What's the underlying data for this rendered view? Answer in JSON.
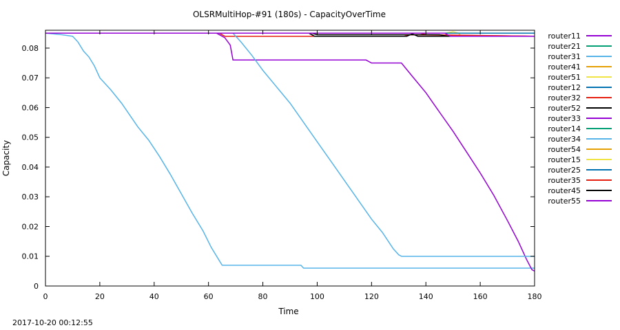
{
  "chart_data": {
    "type": "line",
    "title": "OLSRMultiHop-#91 (180s) - CapacityOverTime",
    "xlabel": "Time",
    "ylabel": "Capacity",
    "xlim": [
      0,
      180
    ],
    "ylim": [
      0,
      0.086
    ],
    "xticks": [
      "0",
      "20",
      "40",
      "60",
      "80",
      "100",
      "120",
      "140",
      "160",
      "180"
    ],
    "yticks": [
      "0",
      "0.01",
      "0.02",
      "0.03",
      "0.04",
      "0.05",
      "0.06",
      "0.07",
      "0.08"
    ],
    "grid": false,
    "legend_position": "right",
    "series": [
      {
        "name": "router11",
        "color": "#9400d3",
        "points": [
          [
            0,
            0.085
          ],
          [
            180,
            0.085
          ]
        ]
      },
      {
        "name": "router21",
        "color": "#009e73",
        "points": [
          [
            0,
            0.085
          ],
          [
            180,
            0.085
          ]
        ]
      },
      {
        "name": "router31",
        "color": "#56b4e9",
        "points": [
          [
            0,
            0.085
          ],
          [
            6,
            0.0845
          ],
          [
            10,
            0.084
          ],
          [
            12,
            0.082
          ],
          [
            14,
            0.079
          ],
          [
            16,
            0.077
          ],
          [
            18,
            0.074
          ],
          [
            20,
            0.07
          ],
          [
            24,
            0.066
          ],
          [
            28,
            0.0615
          ],
          [
            31,
            0.0575
          ],
          [
            34,
            0.0535
          ],
          [
            38,
            0.049
          ],
          [
            42,
            0.0435
          ],
          [
            46,
            0.0375
          ],
          [
            50,
            0.031
          ],
          [
            54,
            0.0245
          ],
          [
            58,
            0.0185
          ],
          [
            61,
            0.013
          ],
          [
            64,
            0.0085
          ],
          [
            65,
            0.007
          ],
          [
            94,
            0.007
          ],
          [
            95,
            0.006
          ],
          [
            180,
            0.006
          ]
        ]
      },
      {
        "name": "router41",
        "color": "#e69f00",
        "points": [
          [
            0,
            0.085
          ],
          [
            180,
            0.085
          ]
        ]
      },
      {
        "name": "router51",
        "color": "#f0e442",
        "points": [
          [
            0,
            0.085
          ],
          [
            147,
            0.085
          ],
          [
            150,
            0.0855
          ],
          [
            152,
            0.085
          ],
          [
            153,
            0.084
          ],
          [
            180,
            0.084
          ]
        ]
      },
      {
        "name": "router12",
        "color": "#0072b2",
        "points": [
          [
            0,
            0.085
          ],
          [
            180,
            0.085
          ]
        ]
      },
      {
        "name": "router32",
        "color": "#e51e10",
        "points": [
          [
            0,
            0.085
          ],
          [
            64,
            0.085
          ],
          [
            66,
            0.084
          ],
          [
            132,
            0.084
          ],
          [
            134,
            0.0845
          ],
          [
            180,
            0.084
          ]
        ]
      },
      {
        "name": "router52",
        "color": "#000000",
        "points": [
          [
            0,
            0.085
          ],
          [
            97,
            0.085
          ],
          [
            99,
            0.084
          ],
          [
            133,
            0.084
          ],
          [
            135,
            0.0848
          ],
          [
            137,
            0.084
          ],
          [
            180,
            0.084
          ]
        ]
      },
      {
        "name": "router33",
        "color": "#9400d3",
        "points": [
          [
            0,
            0.085
          ],
          [
            63,
            0.085
          ],
          [
            66,
            0.0835
          ],
          [
            68,
            0.081
          ],
          [
            69,
            0.076
          ],
          [
            118,
            0.076
          ],
          [
            120,
            0.075
          ],
          [
            131,
            0.075
          ],
          [
            135,
            0.0705
          ],
          [
            140,
            0.065
          ],
          [
            145,
            0.0585
          ],
          [
            150,
            0.052
          ],
          [
            155,
            0.045
          ],
          [
            160,
            0.038
          ],
          [
            165,
            0.0305
          ],
          [
            170,
            0.022
          ],
          [
            174,
            0.015
          ],
          [
            177,
            0.009
          ],
          [
            179,
            0.0055
          ],
          [
            180,
            0.005
          ]
        ]
      },
      {
        "name": "router14",
        "color": "#009e73",
        "points": [
          [
            0,
            0.085
          ],
          [
            180,
            0.085
          ]
        ]
      },
      {
        "name": "router34",
        "color": "#56b4e9",
        "points": [
          [
            0,
            0.085
          ],
          [
            69,
            0.085
          ],
          [
            72,
            0.082
          ],
          [
            76,
            0.0775
          ],
          [
            80,
            0.0725
          ],
          [
            85,
            0.067
          ],
          [
            90,
            0.0615
          ],
          [
            95,
            0.055
          ],
          [
            100,
            0.0485
          ],
          [
            105,
            0.042
          ],
          [
            110,
            0.0355
          ],
          [
            115,
            0.029
          ],
          [
            120,
            0.0225
          ],
          [
            124,
            0.018
          ],
          [
            128,
            0.0125
          ],
          [
            130,
            0.0105
          ],
          [
            131,
            0.01
          ],
          [
            180,
            0.01
          ]
        ]
      },
      {
        "name": "router54",
        "color": "#e69f00",
        "points": [
          [
            0,
            0.085
          ],
          [
            180,
            0.085
          ]
        ]
      },
      {
        "name": "router15",
        "color": "#f0e442",
        "points": [
          [
            0,
            0.085
          ],
          [
            180,
            0.085
          ]
        ]
      },
      {
        "name": "router25",
        "color": "#0072b2",
        "points": [
          [
            0,
            0.085
          ],
          [
            180,
            0.085
          ]
        ]
      },
      {
        "name": "router35",
        "color": "#e51e10",
        "points": [
          [
            0,
            0.085
          ],
          [
            138,
            0.085
          ],
          [
            140,
            0.0845
          ],
          [
            180,
            0.084
          ]
        ]
      },
      {
        "name": "router45",
        "color": "#000000",
        "points": [
          [
            0,
            0.085
          ],
          [
            98,
            0.085
          ],
          [
            100,
            0.0845
          ],
          [
            145,
            0.0845
          ],
          [
            148,
            0.084
          ],
          [
            180,
            0.084
          ]
        ]
      },
      {
        "name": "router55",
        "color": "#9400d3",
        "points": [
          [
            0,
            0.085
          ],
          [
            147,
            0.085
          ],
          [
            149,
            0.084
          ],
          [
            180,
            0.084
          ]
        ]
      }
    ]
  },
  "timestamp": "2017-10-20 00:12:55"
}
